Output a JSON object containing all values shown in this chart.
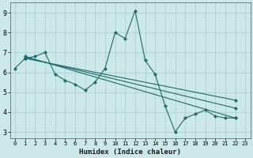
{
  "xlabel": "Humidex (Indice chaleur)",
  "xlim": [
    -0.5,
    23.5
  ],
  "ylim": [
    2.7,
    9.5
  ],
  "yticks": [
    3,
    4,
    5,
    6,
    7,
    8,
    9
  ],
  "xticks": [
    0,
    1,
    2,
    3,
    4,
    5,
    6,
    7,
    8,
    9,
    10,
    11,
    12,
    13,
    14,
    15,
    16,
    17,
    18,
    19,
    20,
    21,
    22,
    23
  ],
  "xtick_labels": [
    "0",
    "1",
    "2",
    "3",
    "4",
    "5",
    "6",
    "7",
    "8",
    "9",
    "10",
    "11",
    "12",
    "13",
    "14",
    "15",
    "16",
    "17",
    "18",
    "19",
    "20",
    "21",
    "22",
    "23"
  ],
  "bg_color": "#cce8e8",
  "grid_color": "#aacccc",
  "line_color": "#1a6b6b",
  "series": [
    {
      "x": [
        0,
        1,
        2,
        3,
        4,
        5,
        6,
        7,
        8,
        9,
        10,
        11,
        12,
        13,
        14,
        15,
        16,
        17,
        18,
        19,
        20,
        21,
        22
      ],
      "y": [
        6.2,
        6.7,
        6.8,
        7.0,
        5.9,
        5.6,
        5.4,
        5.1,
        5.5,
        6.2,
        8.0,
        7.7,
        9.1,
        6.6,
        5.9,
        4.3,
        3.0,
        3.7,
        3.9,
        4.1,
        3.8,
        3.7,
        3.7
      ]
    },
    {
      "x": [
        1,
        22
      ],
      "y": [
        6.8,
        3.7
      ]
    },
    {
      "x": [
        1,
        22
      ],
      "y": [
        6.8,
        3.7
      ]
    },
    {
      "x": [
        1,
        22
      ],
      "y": [
        6.8,
        3.7
      ]
    }
  ],
  "straight_lines": [
    {
      "x": [
        1,
        22
      ],
      "y": [
        6.8,
        3.7
      ]
    },
    {
      "x": [
        1,
        22
      ],
      "y": [
        6.75,
        4.2
      ]
    },
    {
      "x": [
        1,
        22
      ],
      "y": [
        6.7,
        4.6
      ]
    }
  ]
}
